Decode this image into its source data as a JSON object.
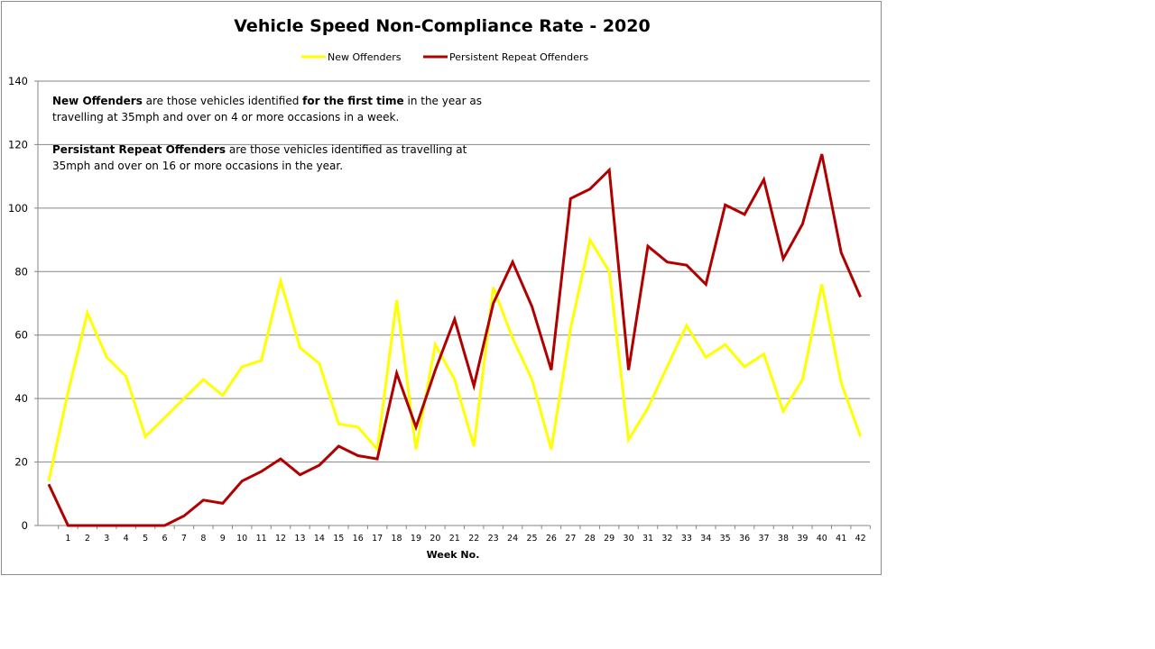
{
  "chart_data": {
    "type": "line",
    "title": "Vehicle Speed Non-Compliance Rate - 2020",
    "xlabel": "Week No.",
    "ylabel": "",
    "ylim": [
      0,
      140
    ],
    "yticks": [
      0,
      20,
      40,
      60,
      80,
      100,
      120,
      140
    ],
    "grid": true,
    "legend_position": "top-center",
    "categories": [
      "",
      "1",
      "2",
      "3",
      "4",
      "5",
      "6",
      "7",
      "8",
      "9",
      "10",
      "11",
      "12",
      "13",
      "14",
      "15",
      "16",
      "17",
      "18",
      "19",
      "20",
      "21",
      "22",
      "23",
      "24",
      "25",
      "26",
      "27",
      "28",
      "29",
      "30",
      "31",
      "32",
      "33",
      "34",
      "35",
      "36",
      "37",
      "38",
      "39",
      "40",
      "41",
      "42"
    ],
    "series": [
      {
        "name": "New Offenders",
        "color": "#ffff00",
        "values": [
          14,
          42,
          67,
          53,
          47,
          28,
          34,
          40,
          46,
          41,
          50,
          52,
          77,
          56,
          51,
          32,
          31,
          24,
          71,
          24,
          57,
          46,
          25,
          75,
          59,
          46,
          24,
          62,
          90,
          80,
          27,
          37,
          50,
          63,
          53,
          57,
          50,
          54,
          36,
          46,
          76,
          45,
          28
        ]
      },
      {
        "name": "Persistent Repeat Offenders",
        "color": "#b00000",
        "values": [
          13,
          0,
          0,
          0,
          0,
          0,
          0,
          3,
          8,
          7,
          14,
          17,
          21,
          16,
          19,
          25,
          22,
          21,
          48,
          31,
          49,
          65,
          44,
          70,
          83,
          69,
          49,
          103,
          106,
          112,
          49,
          88,
          83,
          82,
          76,
          101,
          98,
          109,
          84,
          95,
          117,
          86,
          72
        ]
      }
    ],
    "annotations": [
      {
        "lines": [
          [
            {
              "text": "New Offenders",
              "bold": true
            },
            {
              "text": " are those vehicles identified ",
              "bold": false
            },
            {
              "text": "for the first time",
              "bold": true
            },
            {
              "text": " in the year as",
              "bold": false
            }
          ],
          [
            {
              "text": "travelling at 35mph and over on 4 or more occasions in a week.",
              "bold": false
            }
          ]
        ]
      },
      {
        "lines": [
          [
            {
              "text": "Persistant Repeat Offenders",
              "bold": true
            },
            {
              "text": " are those vehicles identified as travelling at",
              "bold": false
            }
          ],
          [
            {
              "text": "35mph and over on 16 or more occasions in the year.",
              "bold": false
            }
          ]
        ]
      }
    ]
  },
  "colors": {
    "gridline": "#868686",
    "axis": "#868686",
    "frame": "#8c8c8c"
  }
}
